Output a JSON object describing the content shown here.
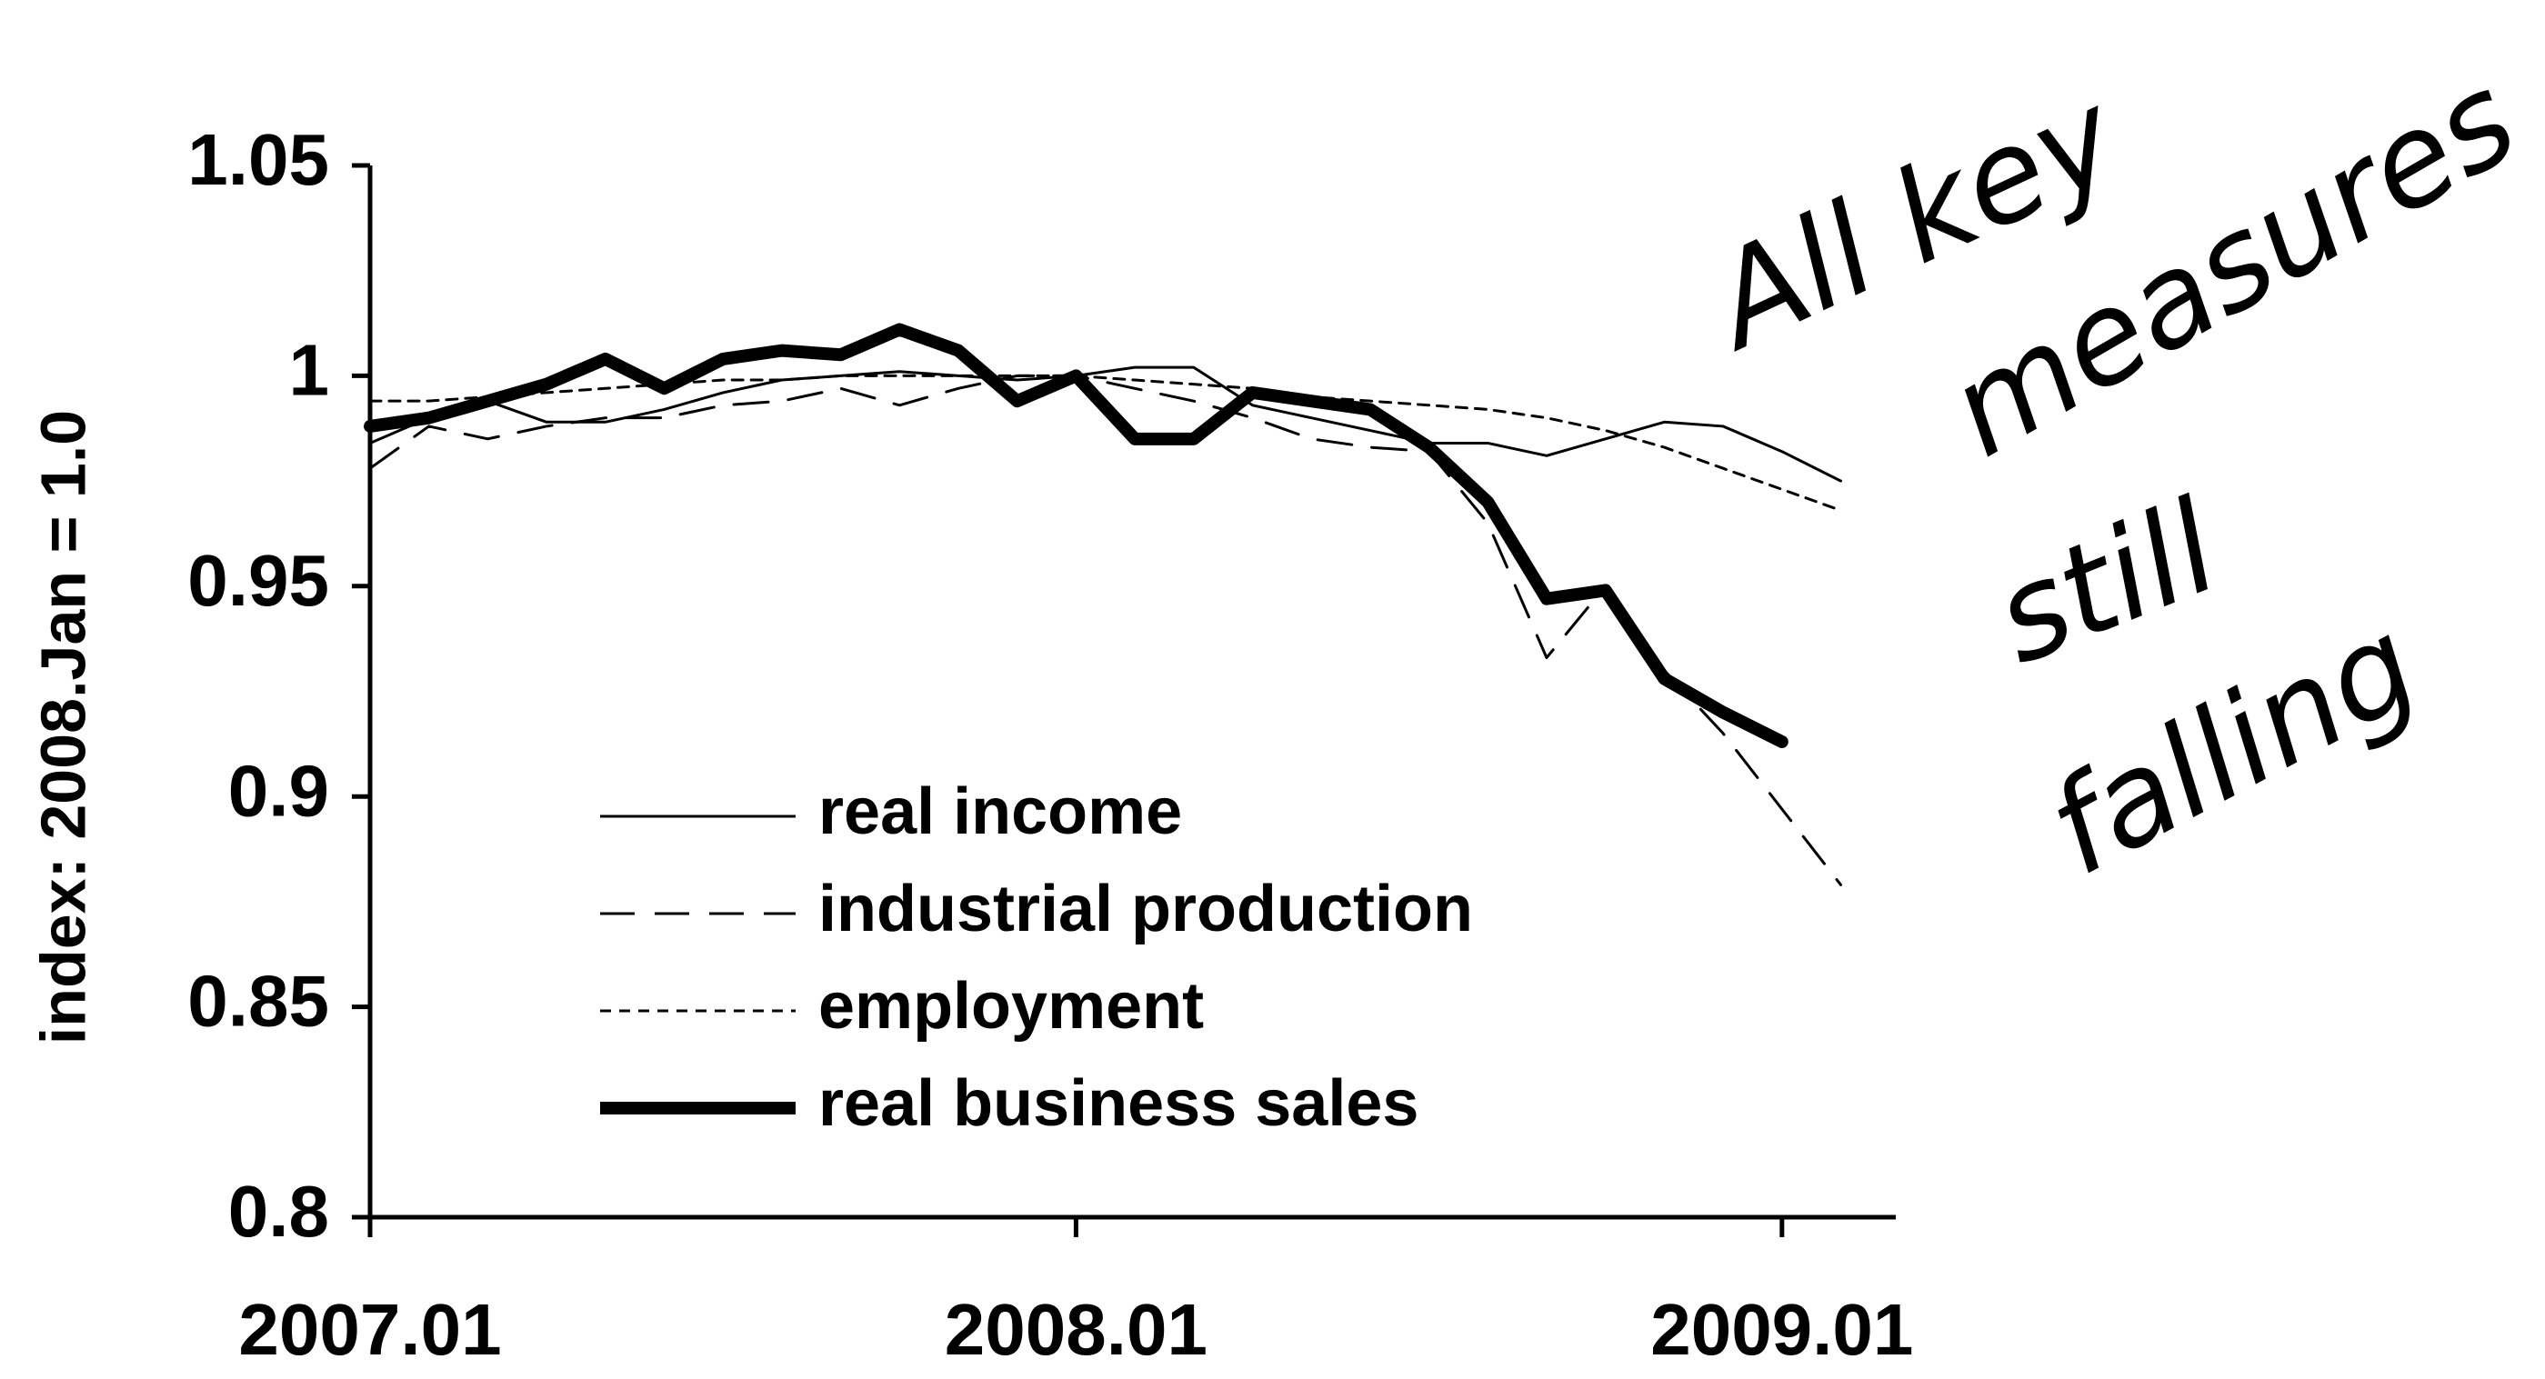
{
  "chart_data": {
    "type": "line",
    "y_label": "index: 2008.Jan = 1.0",
    "annotation": [
      "All key",
      "measures",
      "still",
      "falling"
    ],
    "categories": [
      "2007.01",
      null,
      null,
      null,
      null,
      null,
      null,
      null,
      null,
      null,
      null,
      null,
      "2008.01",
      null,
      null,
      null,
      null,
      null,
      null,
      null,
      null,
      null,
      null,
      null,
      "2009.01",
      null
    ],
    "ylim": [
      0.8,
      1.05
    ],
    "yticks": [
      0.8,
      0.85,
      0.9,
      0.95,
      1,
      1.05
    ],
    "series": [
      {
        "name": "real income",
        "color": "#000000",
        "line_style": "solid",
        "width": 3,
        "values": [
          0.984,
          0.99,
          0.994,
          0.989,
          0.989,
          0.992,
          0.996,
          0.999,
          1.0,
          1.001,
          1.0,
          0.999,
          1.0,
          1.002,
          1.002,
          0.993,
          0.99,
          0.987,
          0.984,
          0.984,
          0.981,
          0.985,
          0.989,
          0.988,
          0.982,
          0.975
        ]
      },
      {
        "name": "industrial production",
        "color": "#000000",
        "line_style": "dashed",
        "width": 3,
        "values": [
          0.978,
          0.988,
          0.985,
          0.988,
          0.99,
          0.99,
          0.993,
          0.994,
          0.997,
          0.993,
          0.997,
          1.0,
          1.0,
          0.997,
          0.994,
          0.99,
          0.985,
          0.983,
          0.982,
          0.965,
          0.933,
          0.95,
          0.93,
          0.915,
          0.897,
          0.879
        ]
      },
      {
        "name": "employment",
        "color": "#000000",
        "line_style": "dotted",
        "width": 3,
        "values": [
          0.994,
          0.994,
          0.995,
          0.996,
          0.997,
          0.998,
          0.999,
          0.999,
          1.0,
          1.0,
          1.0,
          1.0,
          1.0,
          0.999,
          0.998,
          0.997,
          0.995,
          0.994,
          0.993,
          0.992,
          0.99,
          0.987,
          0.983,
          0.978,
          0.973,
          0.968
        ]
      },
      {
        "name": "real business sales",
        "color": "#000000",
        "line_style": "solid",
        "width": 14,
        "values": [
          0.988,
          0.99,
          0.994,
          0.998,
          1.004,
          0.997,
          1.004,
          1.006,
          1.005,
          1.011,
          1.006,
          0.994,
          1.0,
          0.985,
          0.985,
          0.996,
          0.994,
          0.992,
          0.983,
          0.97,
          0.947,
          0.949,
          0.928,
          0.92,
          0.913,
          null
        ]
      }
    ]
  }
}
